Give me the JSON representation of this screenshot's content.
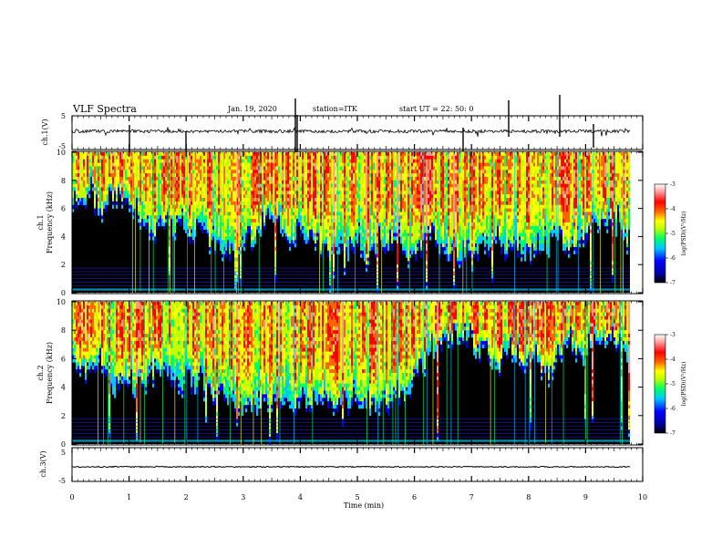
{
  "header": {
    "title": "VLF Spectra",
    "date": "Jan. 19, 2020",
    "station": "station=ITK",
    "start": "start  UT  =  22: 50: 0"
  },
  "colors": {
    "colormap": [
      "#000000",
      "#000066",
      "#0000ff",
      "#00c8ff",
      "#00ff66",
      "#bfff00",
      "#ffff00",
      "#ff6600",
      "#ff0000",
      "#ff9999",
      "#ffffff"
    ]
  },
  "chart_data": [
    {
      "id": "ch1-waveform",
      "type": "line",
      "ylabel": "ch.1(V)",
      "ylim": [
        -5,
        5
      ],
      "yticks": [
        "5",
        "-5"
      ],
      "xlim": [
        0,
        10
      ],
      "baseline": -0.2
    },
    {
      "id": "ch1-spectrogram",
      "type": "heatmap",
      "ylabel": "ch.1\nFrequency (kHz)",
      "ylabel_lines": [
        "ch.1",
        "Frequency  (kHz)"
      ],
      "ylim": [
        0,
        10
      ],
      "yticks": [
        "10",
        "8",
        "6",
        "4",
        "2",
        "0"
      ],
      "xlim": [
        0,
        10
      ],
      "colorbar": {
        "label": "log(PSD)(V²/Hz)",
        "range": [
          -7,
          -3
        ],
        "ticks": [
          "-3",
          "-4",
          "-5",
          "-6",
          "-7"
        ]
      }
    },
    {
      "id": "ch2-spectrogram",
      "type": "heatmap",
      "ylabel_lines": [
        "ch.2",
        "Frequency  (kHz)"
      ],
      "ylim": [
        0,
        10
      ],
      "yticks": [
        "10",
        "8",
        "6",
        "4",
        "2",
        "0"
      ],
      "xlim": [
        0,
        10
      ],
      "colorbar": {
        "label": "log(PSD)(V²/Hz)",
        "range": [
          -7,
          -3
        ],
        "ticks": [
          "-3",
          "-4",
          "-5",
          "-6",
          "-7"
        ]
      }
    },
    {
      "id": "ch3-waveform",
      "type": "line",
      "ylabel": "ch.3(V)",
      "ylim": [
        -5,
        5
      ],
      "yticks": [
        "5",
        "-5"
      ],
      "xlim": [
        0,
        10
      ],
      "baseline": -1.0
    }
  ],
  "xaxis": {
    "label": "Time  (min)",
    "ticks": [
      "0",
      "1",
      "2",
      "3",
      "4",
      "5",
      "6",
      "7",
      "8",
      "9",
      "10"
    ]
  }
}
